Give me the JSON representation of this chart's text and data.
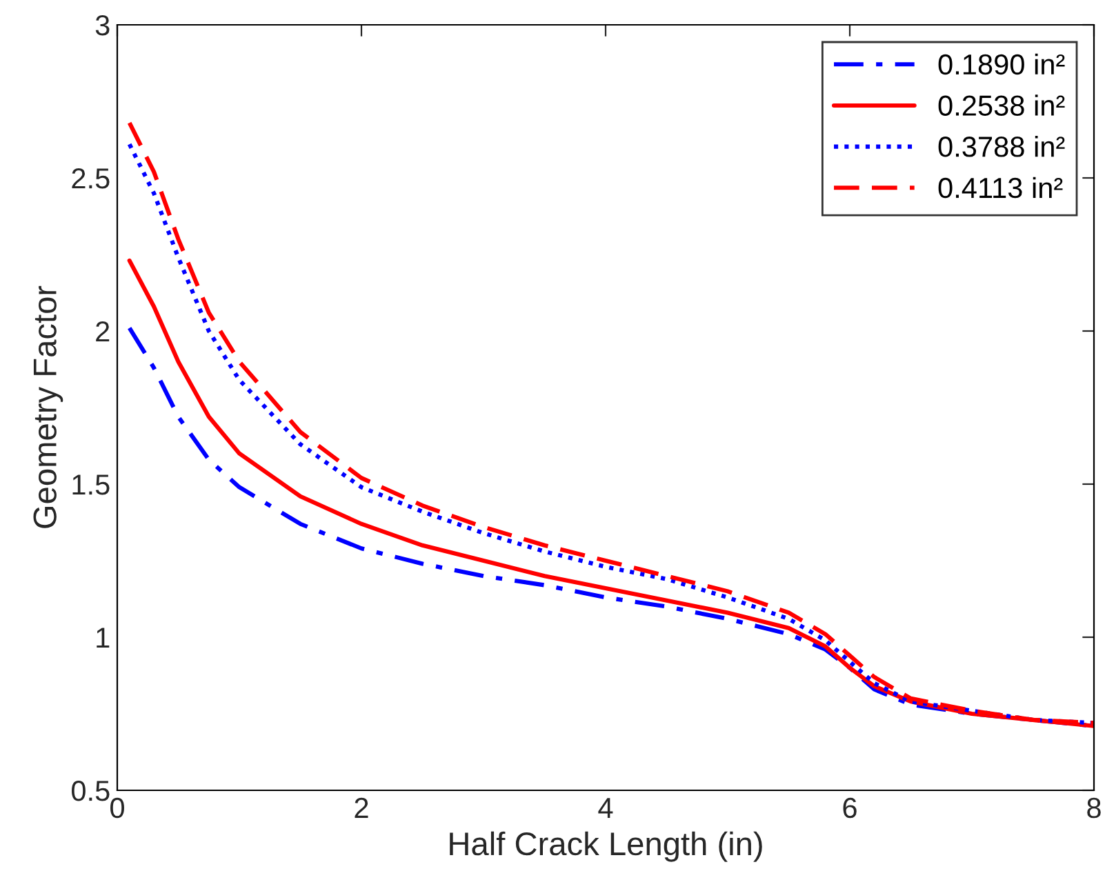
{
  "chart_data": {
    "type": "line",
    "xlabel": "Half Crack Length (in)",
    "ylabel": "Geometry Factor",
    "x": [
      0.1,
      0.3,
      0.5,
      0.75,
      1.0,
      1.5,
      2,
      2.5,
      3,
      3.5,
      4,
      4.5,
      5,
      5.5,
      5.8,
      6,
      6.2,
      6.5,
      7,
      7.5,
      8
    ],
    "series": [
      {
        "name": "0.1890 in²",
        "color": "#0000ff",
        "line_style": "dashdot",
        "values": [
          2.01,
          1.88,
          1.72,
          1.58,
          1.49,
          1.37,
          1.29,
          1.24,
          1.2,
          1.17,
          1.13,
          1.1,
          1.06,
          1.01,
          0.96,
          0.9,
          0.83,
          0.78,
          0.75,
          0.73,
          0.71
        ]
      },
      {
        "name": "0.2538 in²",
        "color": "#ff0000",
        "line_style": "solid",
        "values": [
          2.23,
          2.08,
          1.9,
          1.72,
          1.6,
          1.46,
          1.37,
          1.3,
          1.25,
          1.2,
          1.16,
          1.12,
          1.08,
          1.03,
          0.97,
          0.9,
          0.84,
          0.79,
          0.75,
          0.73,
          0.71
        ]
      },
      {
        "name": "0.3788 in²",
        "color": "#0000ff",
        "line_style": "dotted",
        "values": [
          2.61,
          2.45,
          2.24,
          2.0,
          1.84,
          1.63,
          1.49,
          1.41,
          1.34,
          1.28,
          1.23,
          1.19,
          1.13,
          1.06,
          0.99,
          0.92,
          0.85,
          0.79,
          0.76,
          0.73,
          0.72
        ]
      },
      {
        "name": "0.4113 in²",
        "color": "#ff0000",
        "line_style": "dashed",
        "values": [
          2.68,
          2.52,
          2.3,
          2.06,
          1.9,
          1.67,
          1.52,
          1.43,
          1.36,
          1.3,
          1.25,
          1.2,
          1.15,
          1.08,
          1.01,
          0.94,
          0.87,
          0.8,
          0.76,
          0.73,
          0.72
        ]
      }
    ],
    "xlim": [
      0,
      8
    ],
    "xticks": [
      0,
      2,
      4,
      6,
      8
    ],
    "ylim": [
      0.5,
      3
    ],
    "yticks": [
      0.5,
      1,
      1.5,
      2,
      2.5,
      3
    ],
    "grid": false,
    "legend": "top right"
  }
}
